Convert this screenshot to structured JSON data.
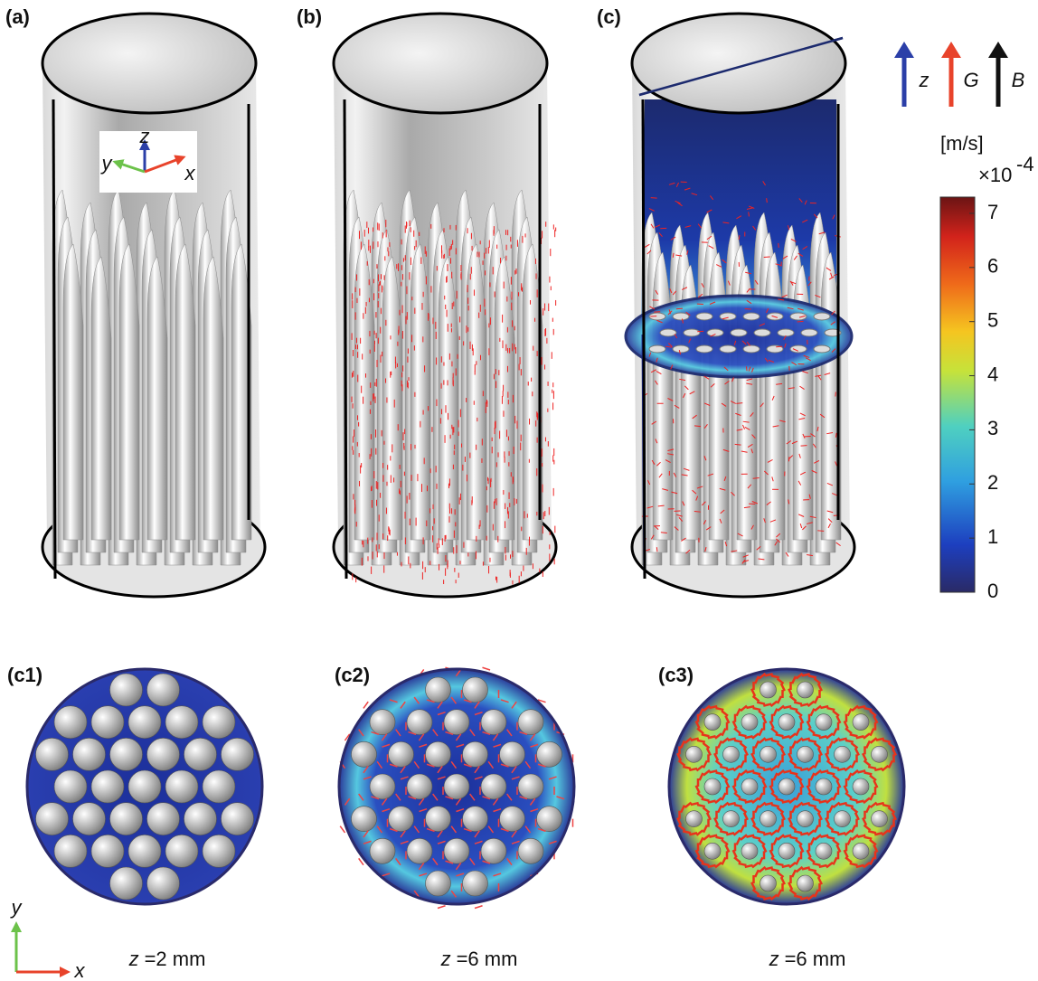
{
  "panels": [
    {
      "label": "(a)"
    },
    {
      "label": "(b)"
    },
    {
      "label": "(c)"
    }
  ],
  "inset_axes": {
    "z": "z",
    "y": "y",
    "x": "x"
  },
  "legend": [
    {
      "symbol": "z",
      "color": "#2b3fa8"
    },
    {
      "symbol": "G",
      "color": "#e8432b"
    },
    {
      "symbol": "B",
      "color": "#111111"
    }
  ],
  "colorbar": {
    "unit": "[m/s]",
    "multiplier": "×10",
    "exponent": "-4",
    "lim": [
      0,
      7.3
    ],
    "ticks": [
      0,
      1,
      2,
      3,
      4,
      5,
      6,
      7
    ]
  },
  "sections": [
    {
      "label": "(c1)",
      "caption_var": "z",
      "caption_value": "=2 mm"
    },
    {
      "label": "(c2)",
      "caption_var": "z",
      "caption_value": "=6 mm"
    },
    {
      "label": "(c3)",
      "caption_var": "z",
      "caption_value": "=6 mm"
    }
  ],
  "plane_axes": {
    "y": "y",
    "x": "x"
  }
}
